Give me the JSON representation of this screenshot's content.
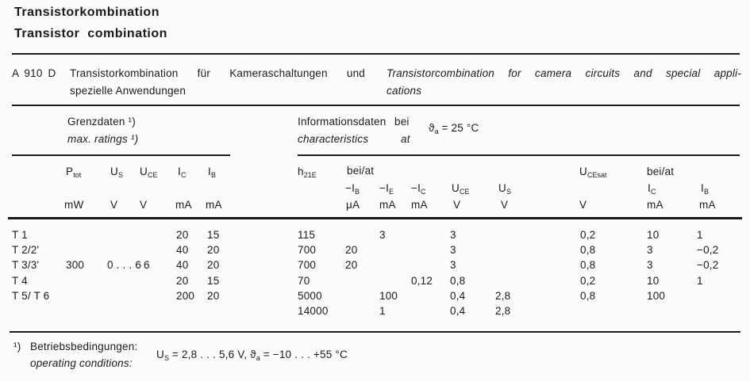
{
  "theme": {
    "ink": "#1a1a18",
    "paper": "#fcfcfa"
  },
  "header": {
    "title_de": "Transistorkombination",
    "title_en": "Transistor combination"
  },
  "device": {
    "type": "A 910 D",
    "desc_de_line1": "Transistorkombination für Kameraschaltungen und",
    "desc_de_line2": "spezielle Anwendungen",
    "desc_en_line1": "Transistorcombination for camera circuits and special appli-",
    "desc_en_line2": "cations"
  },
  "sections": {
    "limits_de": "Grenzdaten ¹)",
    "limits_en": "max. ratings ¹)",
    "char_de_1": "Informationsdaten",
    "char_de_2": "bei",
    "char_en_1": "characteristics",
    "char_en_2": "at",
    "cond_pre": "ϑ",
    "cond_sub": "a",
    "cond_post": " = 25 °C"
  },
  "columns": {
    "ptot": {
      "base": "P",
      "sub": "tot",
      "unit": "mW"
    },
    "us": {
      "base": "U",
      "sub": "S",
      "unit": "V"
    },
    "uce": {
      "base": "U",
      "sub": "CE",
      "unit": "V"
    },
    "ic": {
      "base": "I",
      "sub": "C",
      "unit": "mA"
    },
    "ib": {
      "base": "I",
      "sub": "B",
      "unit": "mA"
    },
    "h21e": {
      "base": "h",
      "sub": "21E"
    },
    "beiat_mid": "bei/at",
    "ib2": {
      "base": "−I",
      "sub": "B",
      "unit": "μA"
    },
    "ie2": {
      "base": "−I",
      "sub": "E",
      "unit": "mA"
    },
    "ic2": {
      "base": "−I",
      "sub": "C",
      "unit": "mA"
    },
    "uce2": {
      "base": "U",
      "sub": "CE",
      "unit": "V"
    },
    "us2": {
      "base": "U",
      "sub": "S",
      "unit": "V"
    },
    "ucesat": {
      "base": "U",
      "sub": "CEsat",
      "unit": "V"
    },
    "beiat_right": "bei/at",
    "ic3": {
      "base": "I",
      "sub": "C",
      "unit": "mA"
    },
    "ib3": {
      "base": "I",
      "sub": "B",
      "unit": "mA"
    }
  },
  "rows": [
    {
      "label": "T 1",
      "ic": "20",
      "ib": "15",
      "h21e": "115",
      "ie2": "3",
      "uce2": "3",
      "ucesat": "0,2",
      "ic3": "10",
      "ib3": "1"
    },
    {
      "label": "T 2/2'",
      "ic": "40",
      "ib": "20",
      "h21e": "700",
      "ib2": "20",
      "uce2": "3",
      "ucesat": "0,8",
      "ic3": "3",
      "ib3": "−0,2"
    },
    {
      "label": "T 3/3'",
      "ptot": "300",
      "us": "0 . . . 6",
      "uce": "6",
      "ic": "40",
      "ib": "20",
      "h21e": "700",
      "ib2": "20",
      "uce2": "3",
      "ucesat": "0,8",
      "ic3": "3",
      "ib3": "−0,2"
    },
    {
      "label": "T 4",
      "ic": "20",
      "ib": "15",
      "h21e": "70",
      "ic2": "0,12",
      "uce2": "0,8",
      "ucesat": "0,2",
      "ic3": "10",
      "ib3": "1"
    },
    {
      "label": "T 5/ T 6",
      "ic": "200",
      "ib": "20",
      "h21e": "5000",
      "ie2": "100",
      "uce2": "0,4",
      "us2": "2,8",
      "ucesat": "0,8",
      "ic3": "100"
    },
    {
      "h21e": "14000",
      "ie2": "1",
      "uce2": "0,4",
      "us2": "2,8"
    }
  ],
  "footnote": {
    "marker": "¹)",
    "label_de": "Betriebsbedingungen:",
    "label_en": "operating conditions:",
    "f_us_base": "U",
    "f_us_sub": "S",
    "f_mid": " = 2,8 . . . 5,6 V, ",
    "f_theta": "ϑ",
    "f_theta_sub": "a",
    "f_end": " = −10 . . . +55 °C"
  }
}
